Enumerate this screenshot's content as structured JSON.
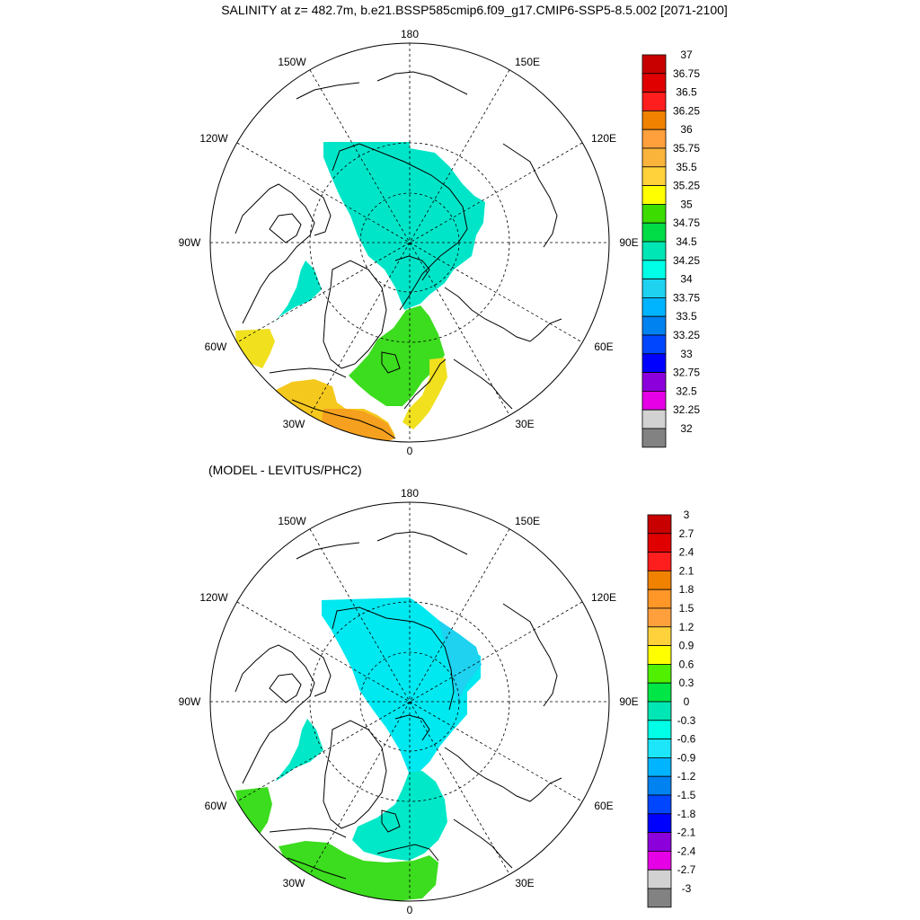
{
  "title": "SALINITY at z= 482.7m, b.e21.BSSP585cmip6.f09_g17.CMIP6-SSP5-8.5.002 [2071-2100]",
  "subtitle": "(MODEL - LEVITUS/PHC2)",
  "lon_labels": {
    "top": "180",
    "top_left": "150W",
    "top_right": "150E",
    "upper_left": "120W",
    "upper_right": "120E",
    "left": "90W",
    "right": "90E",
    "lower_left": "60W",
    "lower_right": "60E",
    "bottom_left": "30W",
    "bottom_right": "30E",
    "bottom": "0"
  },
  "colors": {
    "land_outline": "#000000",
    "graticule": "#000000",
    "salinity": {
      "greenland_sea": "#00e5c8",
      "canada_basin_sw": "#00e5c8",
      "nordic_seas": "#3cdc1e",
      "norwegian_coast": "#f0e01e",
      "iceland_region": "#f5c81e",
      "north_atlantic_warm": "#f5a01e",
      "labrador": "#f0e01e"
    },
    "anomaly": {
      "eurasian_basin": "#00e8f0",
      "marginal_shelf": "#1ed2f0",
      "nordic_seas": "#00e8c8",
      "atlantic_inflow": "#3cdc1e",
      "labrador": "#3cdc1e"
    }
  },
  "legend_top": {
    "labels": [
      "37",
      "36.75",
      "36.5",
      "36.25",
      "36",
      "35.75",
      "35.5",
      "35.25",
      "35",
      "34.75",
      "34.5",
      "34.25",
      "34",
      "33.75",
      "33.5",
      "33.25",
      "33",
      "32.75",
      "32.5",
      "32.25",
      "32"
    ],
    "colors": [
      "#c80000",
      "#e10000",
      "#ff1e1e",
      "#f08200",
      "#ffa03c",
      "#fab43c",
      "#ffd23c",
      "#ffff00",
      "#3cdc00",
      "#00dc46",
      "#00e6b4",
      "#00ffe6",
      "#1ed2f0",
      "#00b4ff",
      "#0082f0",
      "#0046ff",
      "#0000ff",
      "#8c00dc",
      "#e600e6",
      "#d2d2d2",
      "#828282"
    ]
  },
  "legend_bottom": {
    "labels": [
      "3",
      "2.7",
      "2.4",
      "2.1",
      "1.8",
      "1.5",
      "1.2",
      "0.9",
      "0.6",
      "0.3",
      "0",
      "-0.3",
      "-0.6",
      "-0.9",
      "-1.2",
      "-1.5",
      "-1.8",
      "-2.1",
      "-2.4",
      "-2.7",
      "-3"
    ],
    "colors": [
      "#c80000",
      "#e10000",
      "#ff1e1e",
      "#f08200",
      "#ff9628",
      "#ffa03c",
      "#ffd23c",
      "#ffff00",
      "#50f000",
      "#00e646",
      "#00e6b4",
      "#00ffe6",
      "#1ee6fa",
      "#00b4ff",
      "#0082f0",
      "#0046ff",
      "#0000ff",
      "#8c00dc",
      "#e600e6",
      "#d2d2d2",
      "#828282"
    ]
  }
}
